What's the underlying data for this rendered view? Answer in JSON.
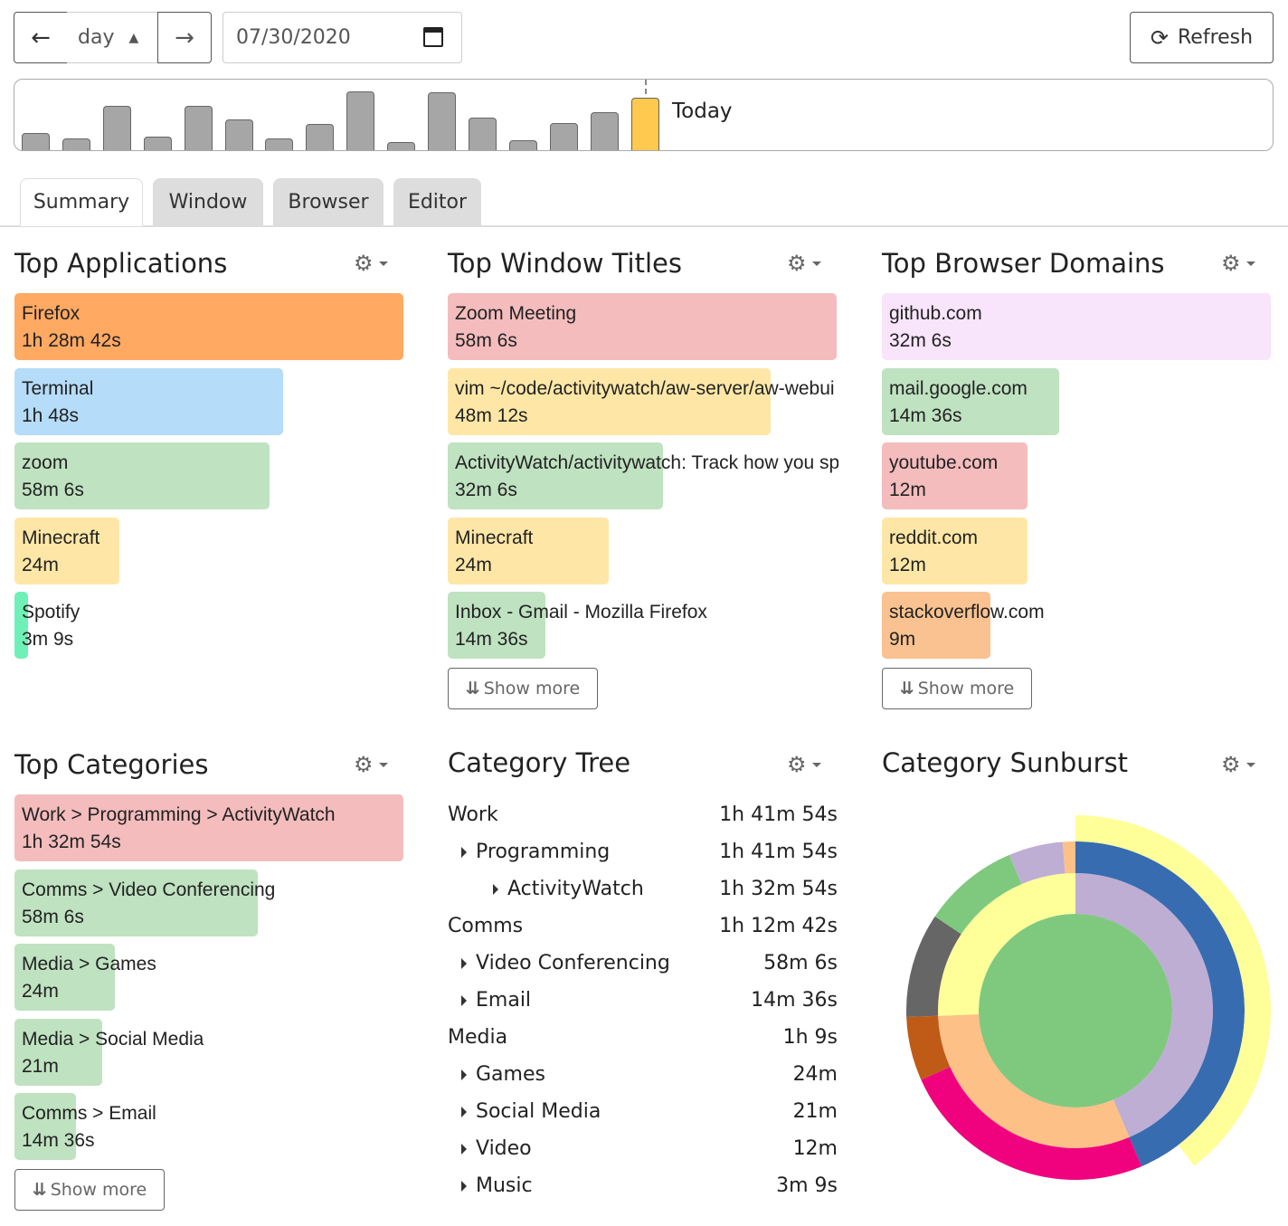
{
  "toolbar": {
    "prev_icon": "arrow-left-icon",
    "period": "day",
    "next_icon": "arrow-right-icon",
    "date": "07/30/2020",
    "calendar_icon": "calendar-icon",
    "refresh_label": "Refresh",
    "refresh_icon": "sync-icon"
  },
  "timeline": {
    "today_label": "Today",
    "values": [
      0.29,
      0.2,
      0.75,
      0.23,
      0.75,
      0.52,
      0.2,
      0.45,
      1.0,
      0.14,
      0.98,
      0.55,
      0.17,
      0.46,
      0.65,
      0.89
    ],
    "selected_index": 15,
    "bar_color": "#a6a6a6",
    "selected_color": "#ffc84f"
  },
  "tabs": [
    {
      "label": "Summary",
      "active": true
    },
    {
      "label": "Window"
    },
    {
      "label": "Browser"
    },
    {
      "label": "Editor"
    }
  ],
  "show_more": "Show more",
  "top_applications": {
    "title": "Top Applications",
    "items": [
      {
        "name": "Firefox",
        "time": "1h 28m 42s",
        "share": 1.0,
        "color": "#ffa962"
      },
      {
        "name": "Terminal",
        "time": "1h 48s",
        "share": 0.69,
        "color": "#b5dcf9"
      },
      {
        "name": "zoom",
        "time": "58m 6s",
        "share": 0.655,
        "color": "#bfe2c0"
      },
      {
        "name": "Minecraft",
        "time": "24m",
        "share": 0.27,
        "color": "#fee7a6"
      },
      {
        "name": "Spotify",
        "time": "3m 9s",
        "share": 0.035,
        "color": "#6ff0b8"
      }
    ]
  },
  "top_window_titles": {
    "title": "Top Window Titles",
    "items": [
      {
        "name": "Zoom Meeting",
        "time": "58m 6s",
        "share": 1.0,
        "color": "#f4bcbd"
      },
      {
        "name": "vim ~/code/activitywatch/aw-server/aw-webui",
        "time": "48m 12s",
        "share": 0.83,
        "color": "#fee7a6"
      },
      {
        "name": "ActivityWatch/activitywatch: Track how you spend your time",
        "time": "32m 6s",
        "share": 0.553,
        "color": "#bfe2c0"
      },
      {
        "name": "Minecraft",
        "time": "24m",
        "share": 0.413,
        "color": "#fee7a6"
      },
      {
        "name": "Inbox - Gmail - Mozilla Firefox",
        "time": "14m 36s",
        "share": 0.251,
        "color": "#bfe2c0"
      }
    ]
  },
  "top_browser_domains": {
    "title": "Top Browser Domains",
    "items": [
      {
        "name": "github.com",
        "time": "32m 6s",
        "share": 1.0,
        "color": "#f8e4fb"
      },
      {
        "name": "mail.google.com",
        "time": "14m 36s",
        "share": 0.455,
        "color": "#bfe2c0"
      },
      {
        "name": "youtube.com",
        "time": "12m",
        "share": 0.374,
        "color": "#f4bcbd"
      },
      {
        "name": "reddit.com",
        "time": "12m",
        "share": 0.374,
        "color": "#fee7a6"
      },
      {
        "name": "stackoverflow.com",
        "time": "9m",
        "share": 0.28,
        "color": "#f9c290"
      }
    ]
  },
  "top_categories": {
    "title": "Top Categories",
    "items": [
      {
        "name": "Work > Programming > ActivityWatch",
        "time": "1h 32m 54s",
        "share": 1.0,
        "color": "#f4bcbd"
      },
      {
        "name": "Comms > Video Conferencing",
        "time": "58m 6s",
        "share": 0.625,
        "color": "#bfe2c0"
      },
      {
        "name": "Media > Games",
        "time": "24m",
        "share": 0.258,
        "color": "#bfe2c0"
      },
      {
        "name": "Media > Social Media",
        "time": "21m",
        "share": 0.226,
        "color": "#bfe2c0"
      },
      {
        "name": "Comms > Email",
        "time": "14m 36s",
        "share": 0.157,
        "color": "#bfe2c0"
      }
    ]
  },
  "category_tree": {
    "title": "Category Tree",
    "rows": [
      {
        "name": "Work",
        "time": "1h 41m 54s",
        "level": 0
      },
      {
        "name": "Programming",
        "time": "1h 41m 54s",
        "level": 1
      },
      {
        "name": "ActivityWatch",
        "time": "1h 32m 54s",
        "level": 2
      },
      {
        "name": "Comms",
        "time": "1h 12m 42s",
        "level": 0
      },
      {
        "name": "Video Conferencing",
        "time": "58m 6s",
        "level": 1
      },
      {
        "name": "Email",
        "time": "14m 36s",
        "level": 1
      },
      {
        "name": "Media",
        "time": "1h 9s",
        "level": 0
      },
      {
        "name": "Games",
        "time": "24m",
        "level": 1
      },
      {
        "name": "Social Media",
        "time": "21m",
        "level": 1
      },
      {
        "name": "Video",
        "time": "12m",
        "level": 1
      },
      {
        "name": "Music",
        "time": "3m 9s",
        "level": 1
      }
    ]
  },
  "category_sunburst": {
    "title": "Category Sunburst"
  },
  "chart_data": {
    "type": "sunburst",
    "center_color": "#7fc97f",
    "rings": [
      [
        {
          "share": 0.436,
          "color": "#beaed4"
        },
        {
          "share": 0.308,
          "color": "#fdc086"
        },
        {
          "share": 0.256,
          "color": "#ffff99"
        }
      ],
      [
        {
          "share": 0.436,
          "color": "#386cb0"
        },
        {
          "share": 0.247,
          "color": "#f0027f"
        },
        {
          "share": 0.061,
          "color": "#bf5b17"
        },
        {
          "share": 0.1,
          "color": "#666666"
        },
        {
          "share": 0.092,
          "color": "#7fc97f"
        },
        {
          "share": 0.052,
          "color": "#beaed4"
        },
        {
          "share": 0.012,
          "color": "#fdc086"
        }
      ],
      [
        {
          "share": 0.396,
          "color": "#ffff99"
        }
      ]
    ]
  }
}
